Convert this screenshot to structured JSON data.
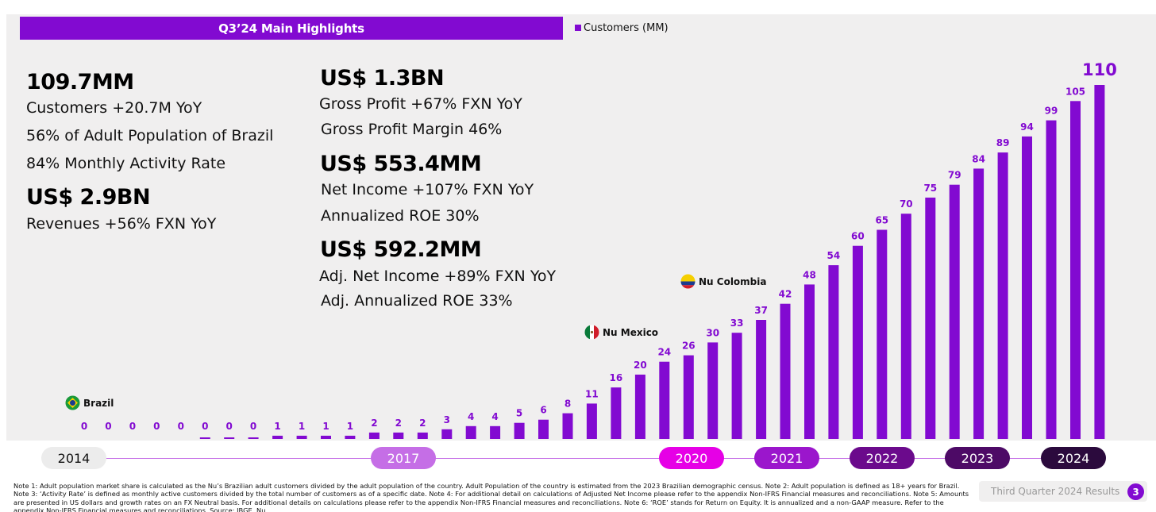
{
  "header": {
    "title": "Q3’24 Main Highlights",
    "legend_label": "Customers (MM)"
  },
  "kpis_left": {
    "customers_value": "109.7MM",
    "customers_growth": "Customers +20.7M YoY",
    "adult_population": "56% of Adult Population of Brazil",
    "activity_rate": "84% Monthly Activity Rate",
    "revenues_value": "US$ 2.9BN",
    "revenues_growth": "Revenues +56%  FXN YoY"
  },
  "kpis_right": {
    "gross_profit_value": "US$ 1.3BN",
    "gross_profit_growth": "Gross Profit +67%  FXN YoY",
    "gross_profit_margin": "Gross Profit Margin 46%",
    "net_income_value": "US$ 553.4MM",
    "net_income_growth": "Net Income +107% FXN YoY",
    "roe": "Annualized ROE 30%",
    "adj_net_income_value": "US$ 592.2MM",
    "adj_net_income_growth": "Adj. Net Income +89% FXN YoY",
    "adj_roe": "Adj. Annualized ROE 33%"
  },
  "markers": {
    "brazil": "Brazil",
    "mexico": "Nu Mexico",
    "colombia": "Nu Colombia"
  },
  "timeline": [
    "2014",
    "2017",
    "2020",
    "2021",
    "2022",
    "2023",
    "2024"
  ],
  "colors": {
    "accent": "#820ad1",
    "bar": "#820ad1",
    "pill_2014": "#ececec",
    "pill_2017": "#c56ee6",
    "pill_2020": "#e600e6",
    "pill_2021": "#9b16cc",
    "pill_2022": "#6b0a8c",
    "pill_2023": "#4d0a66",
    "pill_2024": "#2b0a3d"
  },
  "chart_data": {
    "type": "bar",
    "title": "",
    "xlabel": "",
    "ylabel": "",
    "series": [
      {
        "name": "Customers (MM)",
        "values": [
          0,
          0,
          0,
          0,
          0,
          0,
          0,
          0,
          1,
          1,
          1,
          1,
          2,
          2,
          2,
          3,
          4,
          4,
          5,
          6,
          8,
          11,
          16,
          20,
          24,
          26,
          30,
          33,
          37,
          42,
          48,
          54,
          60,
          65,
          70,
          75,
          79,
          84,
          89,
          94,
          99,
          105,
          110
        ]
      }
    ],
    "ylim": [
      0,
      110
    ],
    "grid": false,
    "legend": "top"
  },
  "footer": {
    "note": "Note 1: Adult population market share is calculated as the Nu’s Brazilian adult customers divided by the adult population of the country. Adult Population of the country is estimated from the 2023 Brazilian demographic census. Note 2: Adult population is defined as 18+ years for Brazil. Note 3: ‘Activity Rate’ is defined as monthly active customers divided by the total number of customers as of a specific date. Note 4: For additional detail on calculations of Adjusted Net Income please refer to the appendix Non-IFRS Financial measures and reconciliations. Note 5: Amounts are presented in US dollars and growth rates on an FX Neutral basis. For additional details on calculations please refer to the appendix Non-IFRS Financial measures and reconciliations. Note 6: ‘ROE’ stands for Return on Equity. It is annualized and a non-GAAP measure. Refer to the appendix Non-IFRS Financial measures and reconciliations. Source: IBGE, Nu.",
    "report_label": "Third Quarter 2024 Results",
    "page_number": "3"
  }
}
